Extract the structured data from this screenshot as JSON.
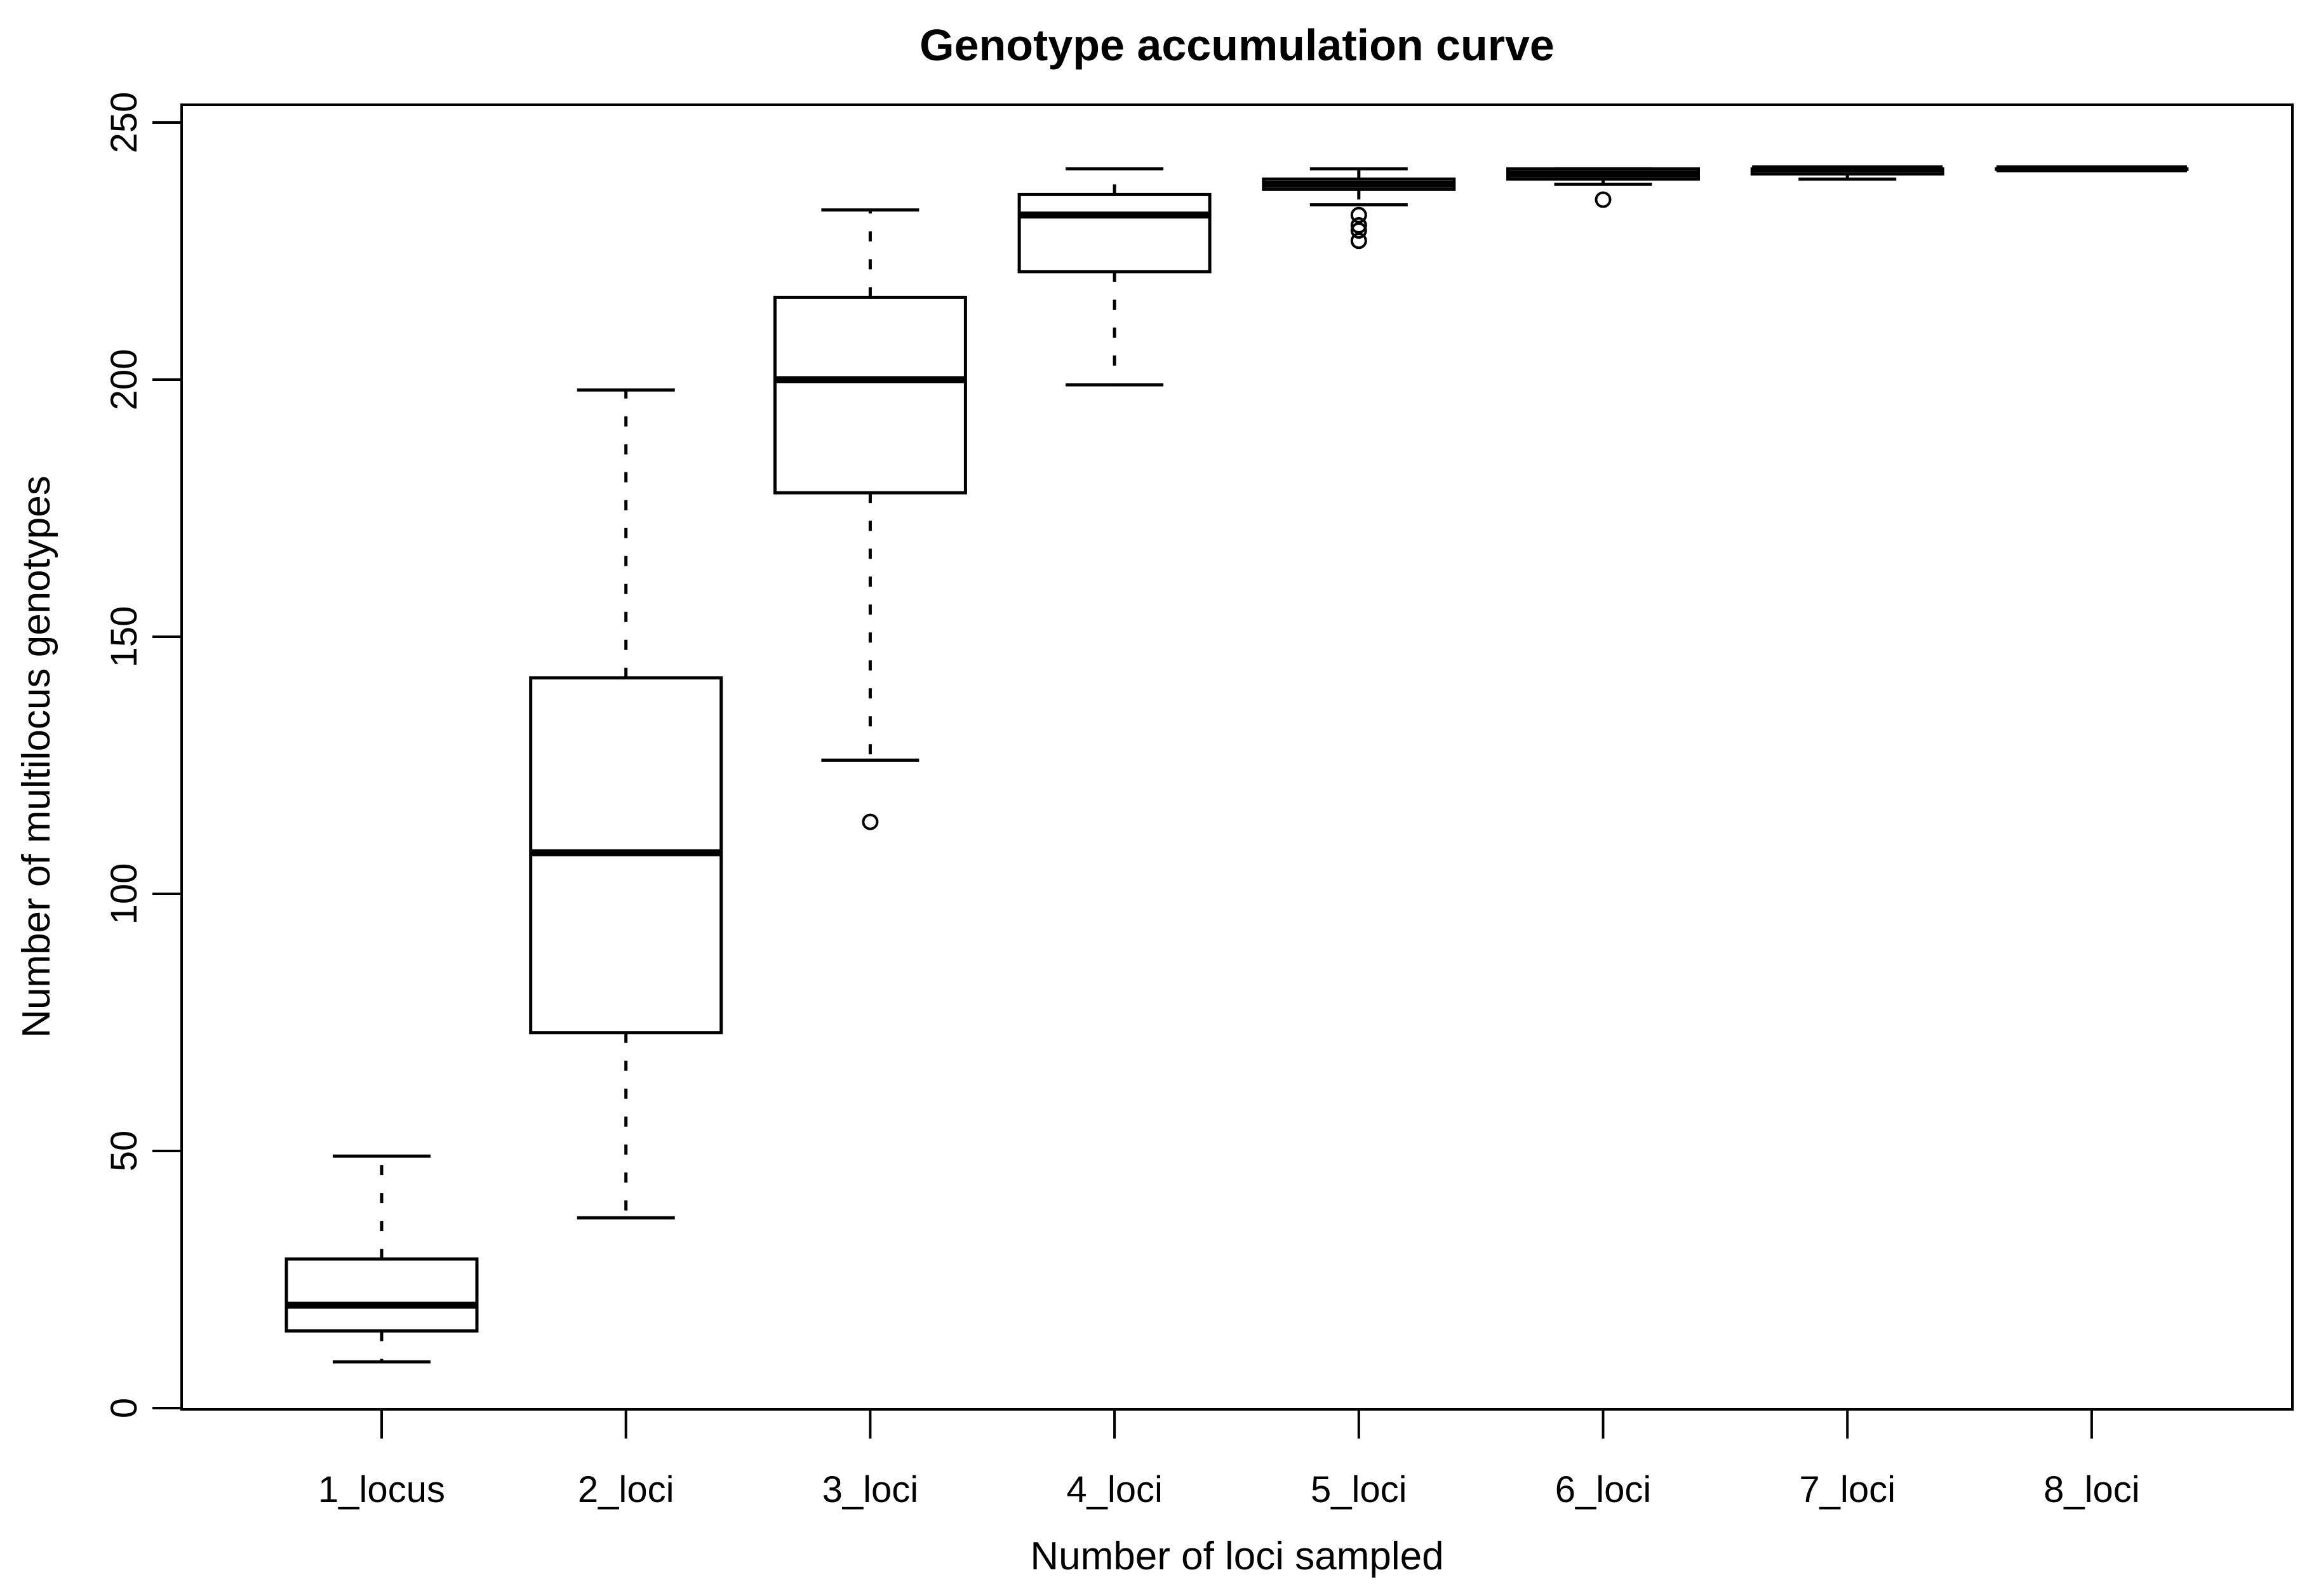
{
  "figure": {
    "title": "Genotype accumulation curve",
    "xlabel": "Number of loci sampled",
    "ylabel": "Number of multilocus genotypes"
  },
  "chart_data": {
    "type": "box",
    "title": "Genotype accumulation curve",
    "xlabel": "Number of loci sampled",
    "ylabel": "Number of multilocus genotypes",
    "grid": false,
    "legend": "none",
    "y_axis": {
      "min": 0,
      "max": 250,
      "ticks": [
        0,
        50,
        100,
        150,
        200,
        250
      ]
    },
    "categories": [
      "1_locus",
      "2_loci",
      "3_loci",
      "4_loci",
      "5_loci",
      "6_loci",
      "7_loci",
      "8_loci"
    ],
    "boxes": [
      {
        "label": "1_locus",
        "whisker_low": 9,
        "q1": 15,
        "median": 20,
        "q3": 29,
        "whisker_high": 49,
        "outliers": []
      },
      {
        "label": "2_loci",
        "whisker_low": 37,
        "q1": 73,
        "median": 108,
        "q3": 142,
        "whisker_high": 198,
        "outliers": []
      },
      {
        "label": "3_loci",
        "whisker_low": 126,
        "q1": 178,
        "median": 200,
        "q3": 216,
        "whisker_high": 233,
        "outliers": [
          114
        ]
      },
      {
        "label": "4_loci",
        "whisker_low": 199,
        "q1": 221,
        "median": 232,
        "q3": 236,
        "whisker_high": 241,
        "outliers": []
      },
      {
        "label": "5_loci",
        "whisker_low": 234,
        "q1": 237,
        "median": 238,
        "q3": 239,
        "whisker_high": 241,
        "outliers": [
          232,
          230,
          229,
          227
        ]
      },
      {
        "label": "6_loci",
        "whisker_low": 238,
        "q1": 239,
        "median": 240,
        "q3": 241,
        "whisker_high": 241,
        "outliers": [
          235
        ]
      },
      {
        "label": "7_loci",
        "whisker_low": 239,
        "q1": 240,
        "median": 241,
        "q3": 241,
        "whisker_high": 241,
        "outliers": []
      },
      {
        "label": "8_loci",
        "whisker_low": 241,
        "q1": 241,
        "median": 241,
        "q3": 241,
        "whisker_high": 241,
        "outliers": []
      }
    ],
    "style": {
      "stroke_color": "#000000",
      "box_fill": "#ffffff",
      "background": "#ffffff"
    }
  }
}
